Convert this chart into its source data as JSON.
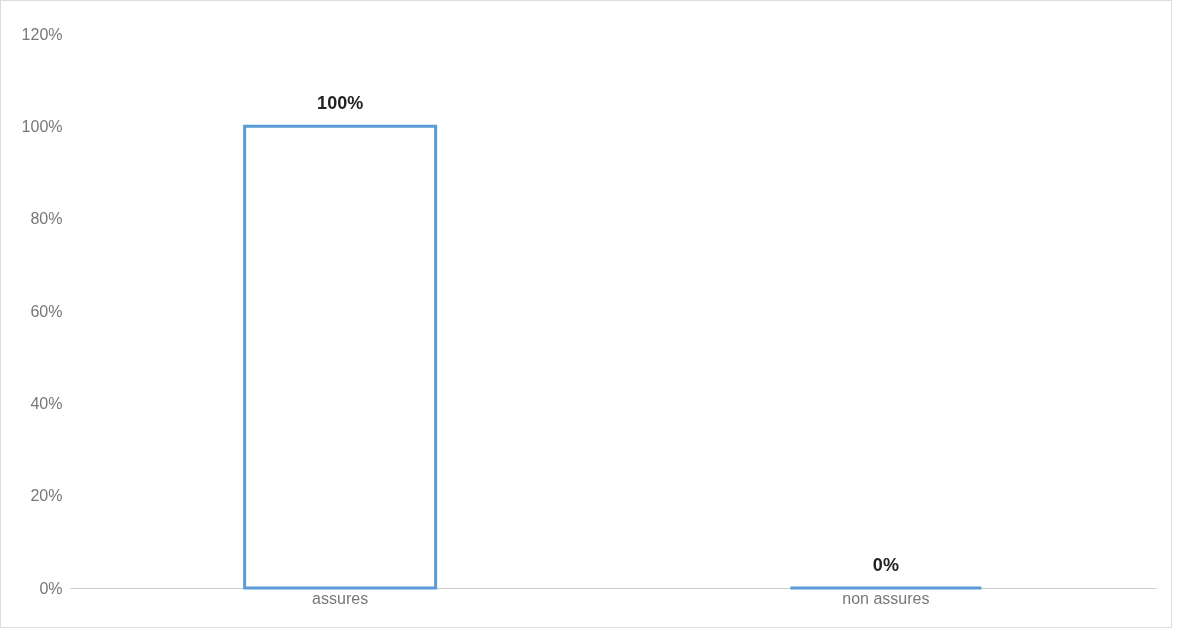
{
  "chart_data": {
    "type": "bar",
    "categories": [
      "assures",
      "non assures"
    ],
    "values": [
      100,
      0
    ],
    "color": "#5b9bd5",
    "ylim": [
      0,
      120
    ],
    "yticks": [
      {
        "value": 0,
        "label": "0%"
      },
      {
        "value": 20,
        "label": "20%"
      },
      {
        "value": 40,
        "label": "40%"
      },
      {
        "value": 60,
        "label": "60%"
      },
      {
        "value": 80,
        "label": "80%"
      },
      {
        "value": 100,
        "label": "100%"
      },
      {
        "value": 120,
        "label": "120%"
      }
    ],
    "value_labels": [
      "100%",
      "0%"
    ],
    "grid": false
  }
}
